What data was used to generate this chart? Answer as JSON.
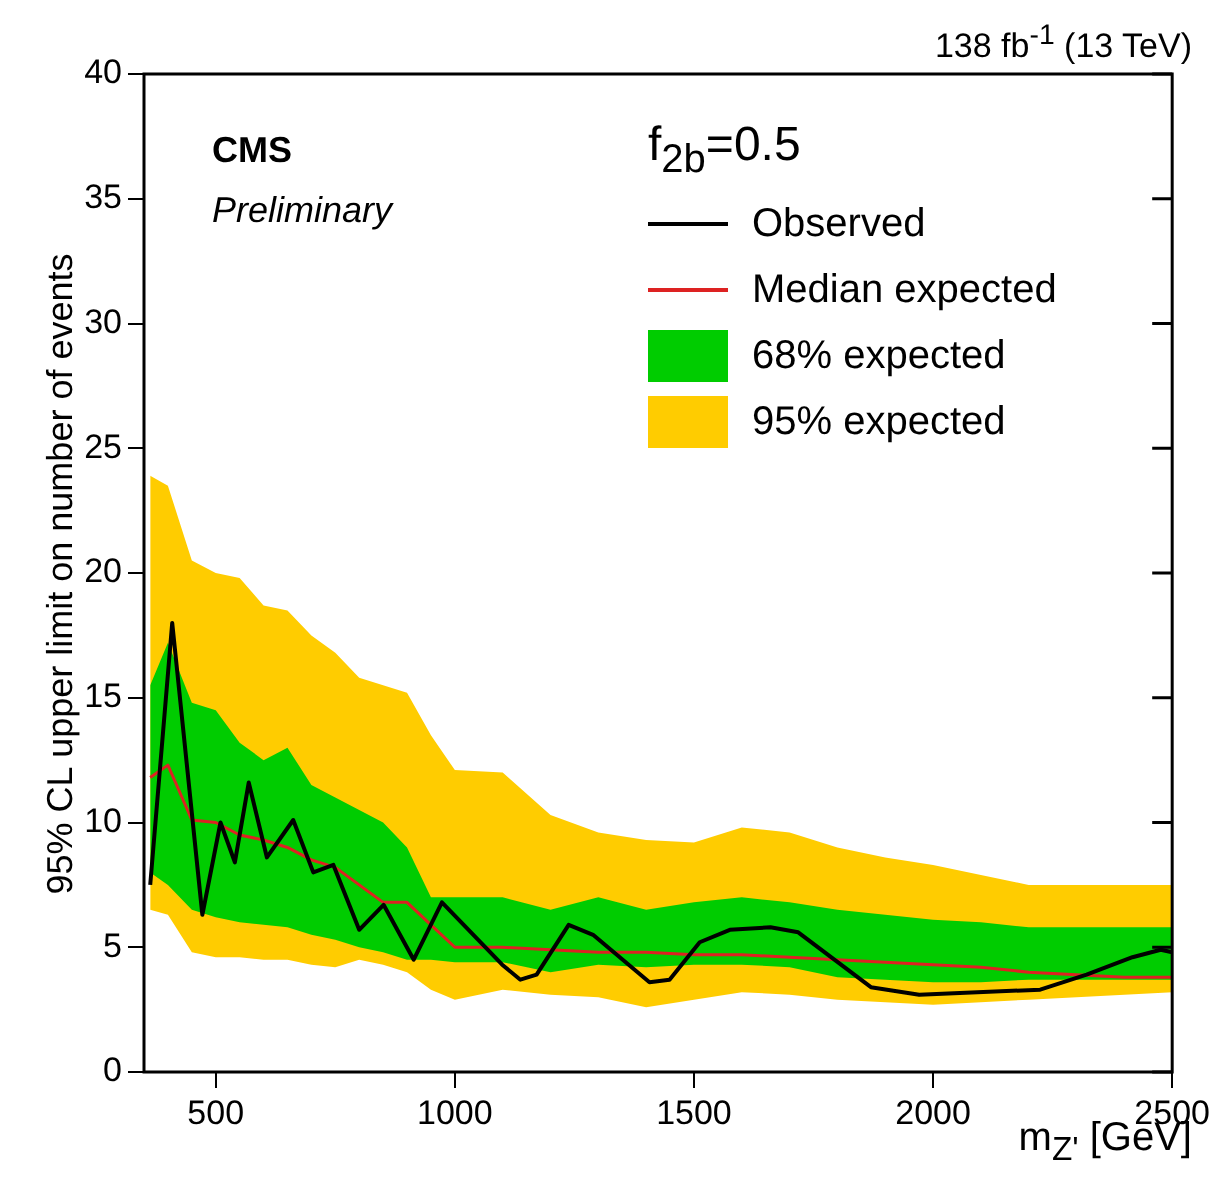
{
  "chart_data": {
    "type": "line",
    "title": "138 fb$^{-1}$ (13 TeV)",
    "xlabel": "m$_{Z'}$ [GeV]",
    "ylabel": "95% CL upper limit on number of events",
    "legend_title": "f$_{2b}$=0.5",
    "legend": "top right",
    "annotations": [
      "CMS",
      "Preliminary"
    ],
    "xlim": [
      350,
      2500
    ],
    "ylim": [
      0,
      40
    ],
    "xticks": [
      500,
      1000,
      1500,
      2000,
      2500
    ],
    "yticks": [
      0,
      5,
      10,
      15,
      20,
      25,
      30,
      35,
      40
    ],
    "series": [
      {
        "name": "Observed",
        "type": "line",
        "color": "#000000",
        "x": [
          363,
          409,
          472,
          510,
          540,
          569,
          607,
          662,
          704,
          746,
          800,
          851,
          914,
          973,
          1099,
          1137,
          1171,
          1238,
          1289,
          1407,
          1449,
          1512,
          1575,
          1660,
          1718,
          1870,
          1971,
          2224,
          2321,
          2417,
          2476,
          2500
        ],
        "values": [
          7.5,
          18.0,
          6.3,
          10.0,
          8.4,
          11.6,
          8.6,
          10.1,
          8.0,
          8.3,
          5.7,
          6.7,
          4.5,
          6.8,
          4.3,
          3.7,
          3.9,
          5.9,
          5.5,
          3.6,
          3.7,
          5.2,
          5.7,
          5.8,
          5.6,
          3.4,
          3.1,
          3.3,
          3.9,
          4.6,
          4.9,
          4.8
        ]
      },
      {
        "name": "Median expected",
        "type": "line",
        "color": "#dd2222",
        "x": [
          363,
          400,
          450,
          500,
          550,
          600,
          650,
          700,
          750,
          800,
          850,
          900,
          950,
          1000,
          1100,
          1200,
          1300,
          1400,
          1500,
          1600,
          1700,
          1800,
          1900,
          2000,
          2100,
          2200,
          2300,
          2400,
          2500
        ],
        "values": [
          11.8,
          12.3,
          10.1,
          10.0,
          9.5,
          9.3,
          9.0,
          8.5,
          8.2,
          7.5,
          6.8,
          6.8,
          5.9,
          5.0,
          5.0,
          4.9,
          4.8,
          4.8,
          4.7,
          4.7,
          4.6,
          4.5,
          4.4,
          4.3,
          4.2,
          4.0,
          3.9,
          3.8,
          3.8
        ]
      },
      {
        "name": "68% expected",
        "type": "line",
        "color": "#00cc00",
        "x": [
          363,
          400,
          450,
          500,
          550,
          600,
          650,
          700,
          750,
          800,
          850,
          900,
          950,
          1000,
          1100,
          1200,
          1300,
          1400,
          1500,
          1600,
          1700,
          1800,
          1900,
          2000,
          2100,
          2200,
          2300,
          2400,
          2500
        ],
        "values": [
          null,
          null,
          null,
          null,
          null,
          null,
          null,
          null,
          null,
          null,
          null,
          null,
          null,
          null,
          null,
          null,
          null,
          null,
          null,
          null,
          null,
          null,
          null,
          null,
          null,
          null,
          null,
          null,
          null
        ],
        "lower": [
          8.0,
          7.5,
          6.5,
          6.2,
          6.0,
          5.9,
          5.8,
          5.5,
          5.3,
          5.0,
          4.8,
          4.5,
          4.5,
          4.4,
          4.4,
          4.0,
          4.3,
          4.2,
          4.3,
          4.3,
          4.2,
          3.8,
          3.7,
          3.6,
          3.6,
          3.7,
          3.7,
          3.7,
          3.7
        ],
        "upper": [
          15.5,
          17.2,
          14.8,
          14.5,
          13.2,
          12.5,
          13.0,
          11.5,
          11.0,
          10.5,
          10.0,
          9.0,
          7.0,
          7.0,
          7.0,
          6.5,
          7.0,
          6.5,
          6.8,
          7.0,
          6.8,
          6.5,
          6.3,
          6.1,
          6.0,
          5.8,
          5.8,
          5.8,
          5.8
        ]
      },
      {
        "name": "95% expected",
        "type": "line",
        "color": "#ffcc00",
        "x": [
          363,
          400,
          450,
          500,
          550,
          600,
          650,
          700,
          750,
          800,
          850,
          900,
          950,
          1000,
          1100,
          1200,
          1300,
          1400,
          1500,
          1600,
          1700,
          1800,
          1900,
          2000,
          2100,
          2200,
          2300,
          2400,
          2500
        ],
        "values": [
          null,
          null,
          null,
          null,
          null,
          null,
          null,
          null,
          null,
          null,
          null,
          null,
          null,
          null,
          null,
          null,
          null,
          null,
          null,
          null,
          null,
          null,
          null,
          null,
          null,
          null,
          null,
          null,
          null
        ],
        "lower": [
          6.5,
          6.3,
          4.8,
          4.6,
          4.6,
          4.5,
          4.5,
          4.3,
          4.2,
          4.5,
          4.3,
          4.0,
          3.3,
          2.9,
          3.3,
          3.1,
          3.0,
          2.6,
          2.9,
          3.2,
          3.1,
          2.9,
          2.8,
          2.7,
          2.8,
          2.9,
          3.0,
          3.1,
          3.2
        ],
        "upper": [
          23.9,
          23.5,
          20.5,
          20.0,
          19.8,
          18.7,
          18.5,
          17.5,
          16.8,
          15.8,
          15.5,
          15.2,
          13.5,
          12.1,
          12.0,
          10.3,
          9.6,
          9.3,
          9.2,
          9.8,
          9.6,
          9.0,
          8.6,
          8.3,
          7.9,
          7.5,
          7.5,
          7.5,
          7.5
        ]
      }
    ]
  }
}
